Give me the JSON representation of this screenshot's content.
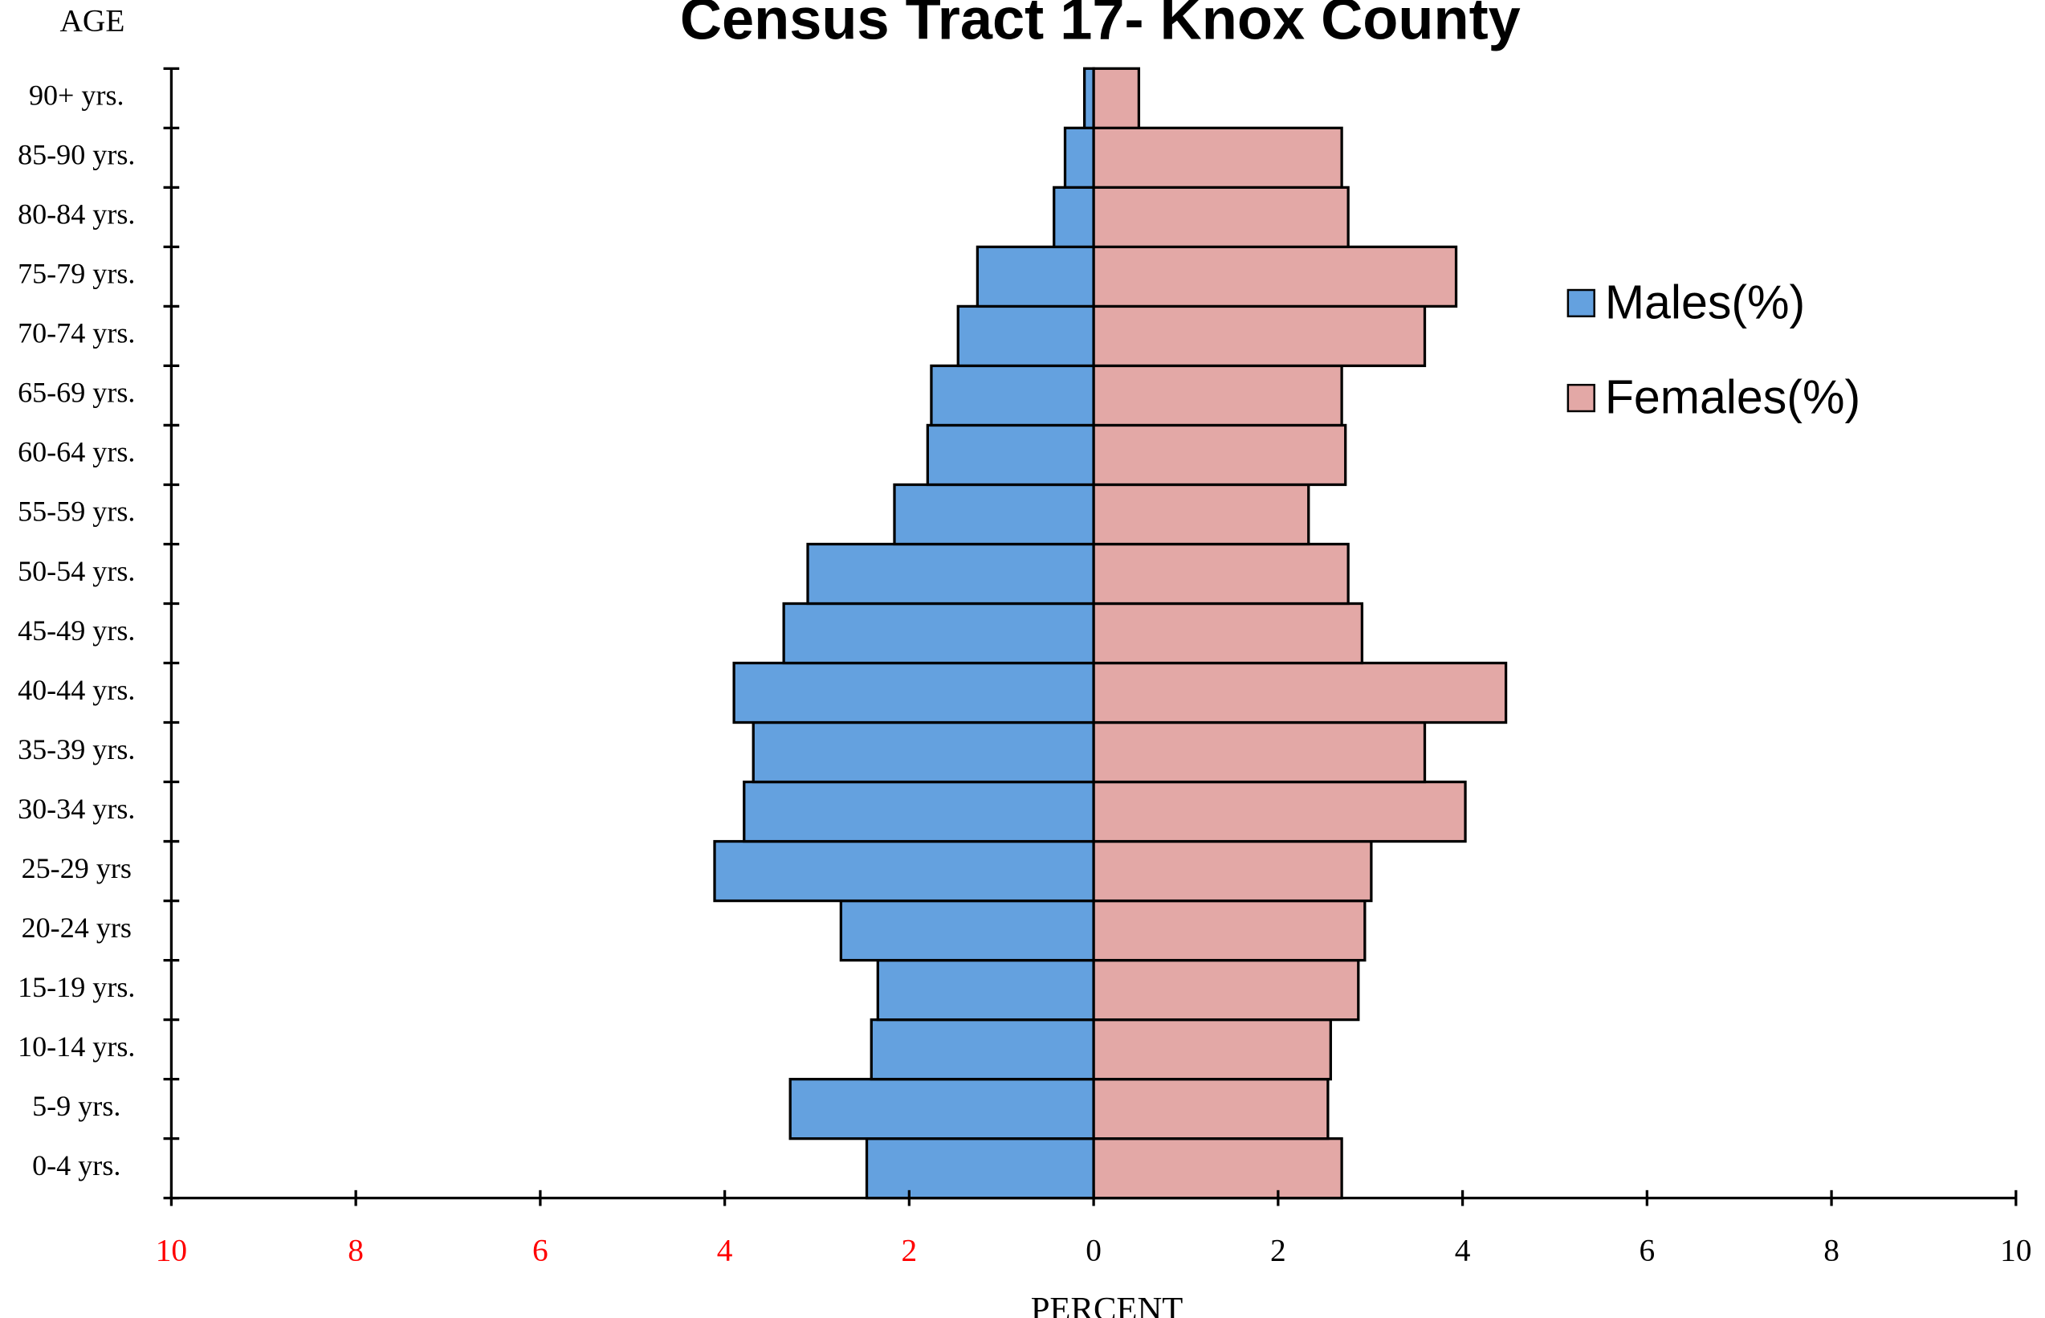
{
  "chart_data": {
    "type": "population-pyramid",
    "title": "Census Tract 17- Knox County",
    "y_label": "AGE",
    "x_label": "PERCENT",
    "categories": [
      "0-4 yrs.",
      "5-9 yrs.",
      "10-14 yrs.",
      "15-19 yrs.",
      "20-24 yrs",
      "25-29 yrs",
      "30-34 yrs.",
      "35-39 yrs.",
      "40-44 yrs.",
      "45-49 yrs.",
      "50-54 yrs.",
      "55-59 yrs.",
      "60-64 yrs.",
      "65-69 yrs.",
      "70-74 yrs.",
      "75-79 yrs.",
      "80-84 yrs.",
      "85-90 yrs.",
      "90+ yrs."
    ],
    "series": [
      {
        "name": "Males(%)",
        "color": "#64a1df",
        "values": [
          -2.46,
          -3.29,
          -2.41,
          -2.34,
          -2.74,
          -4.11,
          -3.79,
          -3.69,
          -3.9,
          -3.36,
          -3.1,
          -2.16,
          -1.8,
          -1.76,
          -1.47,
          -1.26,
          -0.43,
          -0.31,
          -0.1
        ]
      },
      {
        "name": "Females(%)",
        "color": "#e3a8a6",
        "values": [
          2.69,
          2.54,
          2.57,
          2.87,
          2.94,
          3.01,
          4.03,
          3.59,
          4.47,
          2.91,
          2.76,
          2.33,
          2.73,
          2.69,
          3.59,
          3.93,
          2.76,
          2.69,
          0.49
        ]
      }
    ],
    "xlim": [
      -10,
      10
    ],
    "xticks": [
      {
        "value": -10,
        "label": "10"
      },
      {
        "value": -8,
        "label": "8"
      },
      {
        "value": -6,
        "label": "6"
      },
      {
        "value": -4,
        "label": "4"
      },
      {
        "value": -2,
        "label": "2"
      },
      0,
      2,
      4,
      6,
      8,
      10
    ],
    "negative_tick_color": "#ff0000",
    "legend": "right"
  }
}
